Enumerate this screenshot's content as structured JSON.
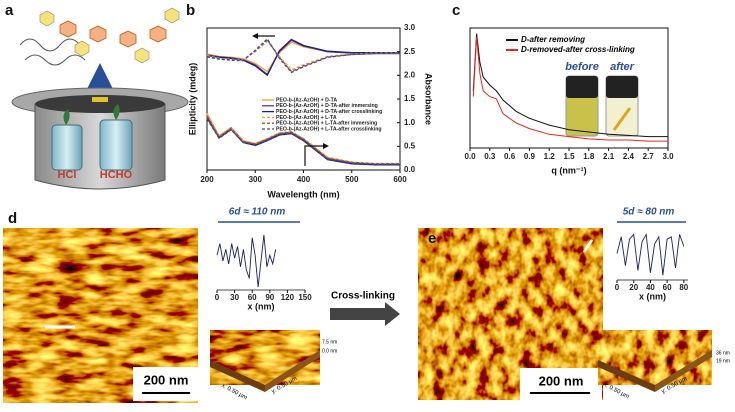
{
  "panel_labels": [
    "a",
    "b",
    "c",
    "d",
    "e"
  ],
  "panel_a": {
    "labels": [
      "HCl",
      "HCHO"
    ]
  },
  "panel_c": {
    "photo_labels": [
      "before",
      "after"
    ]
  },
  "panel_d": {
    "scale_bar": "200 nm",
    "z_labels": [
      "7.5 nm",
      "0.0 nm"
    ],
    "axes": [
      "x: 0.50 µm",
      "y: 0.50 µm"
    ]
  },
  "panel_e": {
    "scale_bar": "200 nm",
    "z_labels": [
      "36 nm",
      "19 nm"
    ],
    "axes": [
      "x: 0.50 µm",
      "y: 0.50 µm"
    ]
  },
  "arrow_label": "Cross-linking",
  "chart_data": [
    {
      "type": "line",
      "xlabel": "Wavelength (nm)",
      "ylabel": "Ellipticity (mdeg)",
      "y2label": "Absorbance",
      "xlim": [
        200,
        600
      ],
      "xticks": [
        200,
        300,
        400,
        500,
        600
      ],
      "ylim": [
        0,
        3
      ],
      "y2lim": [
        0,
        3
      ],
      "y2ticks": [
        {
          "value": 0,
          "label": "0.0"
        },
        0.5,
        {
          "value": 1,
          "label": "1.0"
        },
        1.5,
        {
          "value": 2,
          "label": "2.0"
        },
        2.5,
        {
          "value": 3,
          "label": "3.0"
        }
      ],
      "x": [
        200,
        225,
        250,
        275,
        300,
        325,
        350,
        375,
        400,
        450,
        500,
        550,
        600
      ],
      "series": [
        {
          "name": "PEO-b-(Az-AzOH) + D-TA",
          "color": "#f2a23c",
          "dashed": false,
          "values": [
            2.45,
            2.4,
            2.38,
            2.35,
            2.25,
            2.08,
            2.48,
            2.7,
            2.6,
            2.5,
            2.48,
            2.48,
            2.48
          ],
          "absorbance": [
            1.2,
            0.72,
            0.9,
            0.62,
            0.56,
            0.66,
            0.78,
            0.8,
            0.66,
            0.26,
            0.16,
            0.13,
            0.13
          ]
        },
        {
          "name": "PEO-b-(Az-AzOH) + D-TA-after immersing",
          "color": "#5a3a9a",
          "dashed": false,
          "values": [
            2.43,
            2.39,
            2.37,
            2.33,
            2.22,
            2.02,
            2.5,
            2.74,
            2.62,
            2.5,
            2.47,
            2.47,
            2.47
          ],
          "absorbance": [
            1.15,
            0.7,
            0.88,
            0.6,
            0.54,
            0.64,
            0.76,
            0.79,
            0.64,
            0.24,
            0.15,
            0.12,
            0.12
          ]
        },
        {
          "name": "PEO-b-(Az-AzOH) + D-TA-after crosslinking",
          "color": "#1a237e",
          "dashed": false,
          "values": [
            2.42,
            2.38,
            2.36,
            2.32,
            2.2,
            2.0,
            2.52,
            2.76,
            2.63,
            2.51,
            2.48,
            2.48,
            2.48
          ],
          "absorbance": [
            1.1,
            0.68,
            0.86,
            0.58,
            0.52,
            0.62,
            0.74,
            0.77,
            0.62,
            0.22,
            0.13,
            0.11,
            0.11
          ]
        },
        {
          "name": "PEO-b-(Az-AzOH) + L-TA",
          "color": "#f2a23c",
          "dashed": true,
          "values": [
            2.42,
            2.36,
            2.34,
            2.33,
            2.5,
            2.72,
            2.4,
            2.12,
            2.22,
            2.4,
            2.45,
            2.47,
            2.47
          ],
          "absorbance": [
            1.18,
            0.72,
            0.89,
            0.62,
            0.56,
            0.67,
            0.79,
            0.81,
            0.67,
            0.27,
            0.17,
            0.14,
            0.14
          ]
        },
        {
          "name": "PEO-b-(Az-AzOH) + L-TA-after immersing",
          "color": "#a0522d",
          "dashed": true,
          "values": [
            2.4,
            2.35,
            2.33,
            2.32,
            2.52,
            2.75,
            2.38,
            2.08,
            2.2,
            2.39,
            2.44,
            2.46,
            2.46
          ],
          "absorbance": [
            1.13,
            0.7,
            0.87,
            0.6,
            0.55,
            0.65,
            0.77,
            0.8,
            0.65,
            0.25,
            0.16,
            0.13,
            0.13
          ]
        },
        {
          "name": "PEO-b-(Az-AzOH) + L-TA-after crosslinking",
          "color": "#3949ab",
          "dashed": true,
          "values": [
            2.39,
            2.34,
            2.32,
            2.31,
            2.53,
            2.77,
            2.36,
            2.06,
            2.18,
            2.38,
            2.44,
            2.46,
            2.46
          ],
          "absorbance": [
            1.08,
            0.67,
            0.85,
            0.58,
            0.53,
            0.63,
            0.75,
            0.78,
            0.63,
            0.23,
            0.14,
            0.12,
            0.12
          ]
        }
      ]
    },
    {
      "type": "line",
      "xlabel": "q (nm⁻¹)",
      "xlim": [
        0,
        3
      ],
      "ylim": [
        0,
        1.05
      ],
      "xticks": [
        {
          "value": 0,
          "label": "0.0"
        },
        0.3,
        0.6,
        0.9,
        1.2,
        1.5,
        1.8,
        2.1,
        2.4,
        2.7,
        {
          "value": 3,
          "label": "3.0"
        }
      ],
      "x": [
        0.05,
        0.1,
        0.15,
        0.2,
        0.3,
        0.4,
        0.5,
        0.7,
        0.9,
        1.2,
        1.5,
        1.8,
        2.1,
        2.4,
        2.7,
        3.0
      ],
      "series": [
        {
          "name": "D-after removing",
          "color": "#111111",
          "values": [
            0.5,
            1.0,
            0.75,
            0.62,
            0.55,
            0.5,
            0.42,
            0.32,
            0.26,
            0.2,
            0.16,
            0.14,
            0.12,
            0.11,
            0.1,
            0.1
          ]
        },
        {
          "name": "D-removed-after cross-linking",
          "color": "#e8281e",
          "values": [
            0.45,
            0.97,
            0.65,
            0.5,
            0.45,
            0.43,
            0.3,
            0.22,
            0.17,
            0.12,
            0.1,
            0.08,
            0.07,
            0.07,
            0.06,
            0.06
          ]
        }
      ]
    },
    {
      "type": "line",
      "title": "6d ≈ 110 nm",
      "xlabel": "x (nm)",
      "xlim": [
        0,
        150
      ],
      "xticks": [
        0,
        30,
        60,
        90,
        120,
        150
      ],
      "ylim": [
        0,
        1
      ],
      "color": "#1a2060",
      "x": [
        0,
        5,
        10,
        15,
        20,
        25,
        30,
        35,
        40,
        45,
        50,
        55,
        60,
        65,
        70,
        75,
        80,
        85,
        90,
        95,
        100
      ],
      "values": [
        0.6,
        0.8,
        0.5,
        0.7,
        0.45,
        0.8,
        0.55,
        0.75,
        0.4,
        0.7,
        0.35,
        0.2,
        0.9,
        0.6,
        0.05,
        0.5,
        0.95,
        0.4,
        0.6,
        0.45,
        0.7
      ]
    },
    {
      "type": "line",
      "title": "5d ≈ 80 nm",
      "xlabel": "x (nm)",
      "xlim": [
        0,
        85
      ],
      "xticks": [
        0,
        20,
        40,
        60,
        80
      ],
      "ylim": [
        0,
        1
      ],
      "color": "#1a2060",
      "x": [
        0,
        5,
        10,
        15,
        20,
        25,
        30,
        35,
        40,
        45,
        50,
        55,
        60,
        65,
        70,
        75,
        80
      ],
      "values": [
        0.55,
        0.9,
        0.3,
        0.85,
        0.95,
        0.2,
        0.8,
        0.95,
        0.15,
        0.75,
        0.9,
        0.1,
        0.85,
        0.9,
        0.25,
        0.95,
        0.7
      ]
    }
  ]
}
